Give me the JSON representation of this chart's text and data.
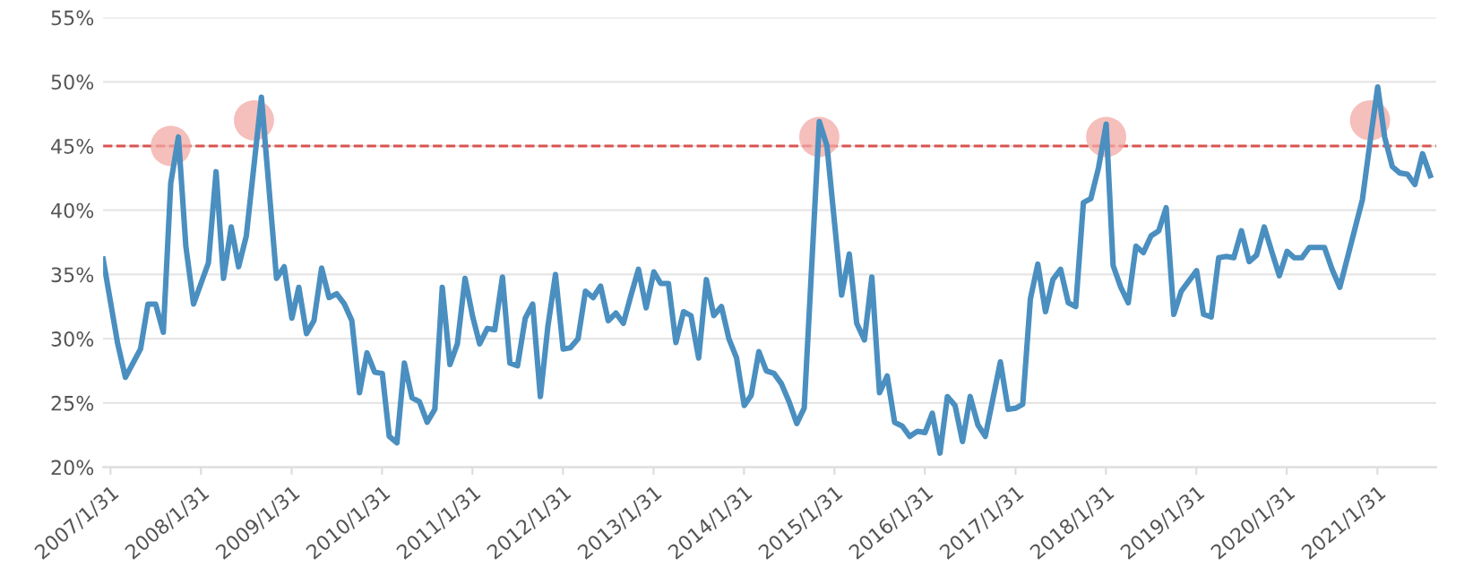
{
  "chart_data": {
    "type": "line",
    "series": [
      {
        "color": "#4a8fc0",
        "x": [
          "2007-01",
          "2007-03",
          "2007-04",
          "2007-06",
          "2007-07",
          "2007-08",
          "2007-09",
          "2007-10",
          "2007-11",
          "2007-12",
          "2008-01",
          "2008-03",
          "2008-04",
          "2008-05",
          "2008-06",
          "2008-07",
          "2008-08",
          "2008-10",
          "2008-12",
          "2009-01",
          "2009-02",
          "2009-03",
          "2009-04",
          "2009-05",
          "2009-06",
          "2009-07",
          "2009-08",
          "2009-09",
          "2009-10",
          "2009-11",
          "2009-12",
          "2010-01",
          "2010-02",
          "2010-03",
          "2010-04",
          "2010-05",
          "2010-06",
          "2010-07",
          "2010-08",
          "2010-09",
          "2010-10",
          "2010-11",
          "2010-12",
          "2011-01",
          "2011-02",
          "2011-03",
          "2011-04",
          "2011-05",
          "2011-06",
          "2011-07",
          "2011-08",
          "2011-09",
          "2011-10",
          "2011-11",
          "2011-12",
          "2012-01",
          "2012-02",
          "2012-03",
          "2012-04",
          "2012-05",
          "2012-06",
          "2012-07",
          "2012-08",
          "2012-09",
          "2012-10",
          "2012-11",
          "2012-12",
          "2013-01",
          "2013-02",
          "2013-03",
          "2013-04",
          "2013-05",
          "2013-06",
          "2013-07",
          "2013-08",
          "2013-09",
          "2013-10",
          "2013-11",
          "2013-12",
          "2014-01",
          "2014-02",
          "2014-03",
          "2014-04",
          "2014-05",
          "2014-06",
          "2014-07",
          "2014-08",
          "2014-09",
          "2014-10",
          "2014-12",
          "2015-01",
          "2015-03",
          "2015-04",
          "2015-05",
          "2015-06",
          "2015-07",
          "2015-08",
          "2015-09",
          "2015-10",
          "2015-11",
          "2015-12",
          "2016-01",
          "2016-02",
          "2016-03",
          "2016-04",
          "2016-05",
          "2016-06",
          "2016-07",
          "2016-08",
          "2016-09",
          "2016-10",
          "2016-12",
          "2017-01",
          "2017-02",
          "2017-03",
          "2017-04",
          "2017-05",
          "2017-06",
          "2017-07",
          "2017-08",
          "2017-09",
          "2017-10",
          "2017-11",
          "2017-12",
          "2018-01",
          "2018-02",
          "2018-03",
          "2018-04",
          "2018-05",
          "2018-06",
          "2018-07",
          "2018-08",
          "2018-09",
          "2018-10",
          "2018-11",
          "2018-12",
          "2019-01",
          "2019-02",
          "2019-03",
          "2019-04",
          "2019-05",
          "2019-06",
          "2019-07",
          "2019-08",
          "2019-09",
          "2019-10",
          "2019-11",
          "2019-12",
          "2020-01",
          "2020-02",
          "2020-03",
          "2020-04",
          "2020-05",
          "2020-07",
          "2020-08",
          "2020-09",
          "2020-12",
          "2021-01",
          "2021-02",
          "2021-03",
          "2021-04",
          "2021-05",
          "2021-06",
          "2021-07",
          "2021-08",
          "2021-09"
        ],
        "values": [
          36.2,
          29.6,
          27.0,
          29.2,
          32.7,
          32.7,
          30.5,
          42.1,
          45.7,
          37.2,
          32.7,
          35.9,
          43.0,
          34.7,
          38.7,
          35.6,
          38.0,
          48.8,
          34.7,
          35.6,
          31.6,
          34.0,
          30.4,
          31.4,
          35.5,
          33.2,
          33.5,
          32.7,
          31.4,
          25.8,
          28.9,
          27.4,
          27.3,
          22.4,
          21.9,
          28.1,
          25.4,
          25.1,
          23.5,
          24.5,
          34.0,
          28.0,
          29.6,
          34.7,
          31.7,
          29.6,
          30.8,
          30.7,
          34.8,
          28.1,
          27.9,
          31.6,
          32.7,
          25.5,
          30.9,
          35.0,
          29.2,
          29.3,
          30.0,
          33.7,
          33.2,
          34.1,
          31.4,
          32.0,
          31.2,
          33.4,
          35.4,
          32.4,
          35.2,
          34.3,
          34.3,
          29.7,
          32.1,
          31.8,
          28.5,
          34.6,
          31.8,
          32.5,
          30.0,
          28.5,
          24.8,
          25.6,
          29.0,
          27.5,
          27.3,
          26.5,
          25.1,
          23.4,
          24.6,
          46.9,
          45.0,
          33.4,
          36.6,
          31.2,
          29.9,
          34.8,
          25.8,
          27.1,
          23.5,
          23.2,
          22.4,
          22.8,
          22.7,
          24.2,
          21.1,
          25.5,
          24.8,
          22.0,
          25.5,
          23.3,
          22.4,
          28.2,
          24.5,
          24.6,
          24.9,
          33.1,
          35.8,
          32.1,
          34.6,
          35.4,
          32.8,
          32.5,
          40.6,
          40.9,
          43.3,
          46.7,
          35.7,
          34.0,
          32.8,
          37.2,
          36.7,
          38.0,
          38.4,
          40.2,
          31.9,
          33.7,
          34.5,
          35.3,
          31.9,
          31.7,
          36.3,
          36.4,
          36.3,
          38.4,
          36.0,
          36.5,
          38.7,
          36.8,
          34.9,
          36.8,
          36.3,
          36.3,
          37.1,
          37.1,
          35.4,
          34.0,
          40.8,
          45.3,
          49.6,
          45.7,
          43.4,
          42.9,
          42.8,
          42.0,
          44.4,
          42.7
        ]
      },
      {
        "type": "scatter",
        "color": "#f2aaa4",
        "x": [
          "2007-10",
          "2008-09",
          "2014-12",
          "2018-02",
          "2021-01"
        ],
        "values": [
          45.0,
          47.0,
          45.7,
          45.7,
          47.0
        ]
      }
    ],
    "ylim": [
      20,
      55
    ],
    "yticks": [
      {
        "value": 20,
        "label": "20%"
      },
      {
        "value": 25,
        "label": "25%"
      },
      {
        "value": 30,
        "label": "30%"
      },
      {
        "value": 35,
        "label": "35%"
      },
      {
        "value": 40,
        "label": "40%"
      },
      {
        "value": 45,
        "label": "45%"
      },
      {
        "value": 50,
        "label": "50%"
      },
      {
        "value": 55,
        "label": "55%"
      }
    ],
    "xlim": [
      "2007-01-01",
      "2021-09-25"
    ],
    "xticks": [
      {
        "value": "2007-01-31",
        "label": "2007/1/31"
      },
      {
        "value": "2008-01-31",
        "label": "2008/1/31"
      },
      {
        "value": "2009-01-31",
        "label": "2009/1/31"
      },
      {
        "value": "2010-01-31",
        "label": "2010/1/31"
      },
      {
        "value": "2011-01-31",
        "label": "2011/1/31"
      },
      {
        "value": "2012-01-31",
        "label": "2012/1/31"
      },
      {
        "value": "2013-01-31",
        "label": "2013/1/31"
      },
      {
        "value": "2014-01-31",
        "label": "2014/1/31"
      },
      {
        "value": "2015-01-31",
        "label": "2015/1/31"
      },
      {
        "value": "2016-01-31",
        "label": "2016/1/31"
      },
      {
        "value": "2017-01-31",
        "label": "2017/1/31"
      },
      {
        "value": "2018-01-31",
        "label": "2018/1/31"
      },
      {
        "value": "2019-01-31",
        "label": "2019/1/31"
      },
      {
        "value": "2020-01-31",
        "label": "2020/1/31"
      },
      {
        "value": "2021-01-31",
        "label": "2021/1/31"
      }
    ],
    "ref_lines": [
      {
        "axis": "y",
        "value": 45,
        "color": "#d9534f",
        "line_style": "dashed"
      }
    ],
    "grid": "y",
    "legend": false
  }
}
